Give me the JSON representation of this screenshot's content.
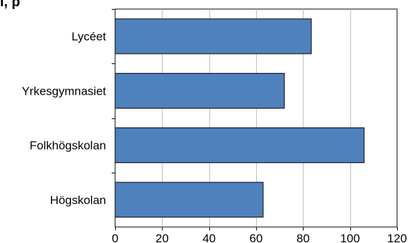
{
  "title_fragment": "l, p",
  "chart_data": {
    "type": "bar",
    "orientation": "horizontal",
    "categories": [
      "Lycéet",
      "Yrkesgymnasiet",
      "Folkhögskolan",
      "Högskolan"
    ],
    "values": [
      83.5,
      72,
      106,
      63
    ],
    "xlim": [
      0,
      120
    ],
    "xticks": [
      "0",
      "20",
      "40",
      "60",
      "80",
      "100",
      "120"
    ],
    "grid": "vertical",
    "legend": "none",
    "colors": {
      "bar": "#4f81bd",
      "bar_border": "#000000",
      "grid": "#bfbfbf",
      "axis": "#000000"
    }
  }
}
